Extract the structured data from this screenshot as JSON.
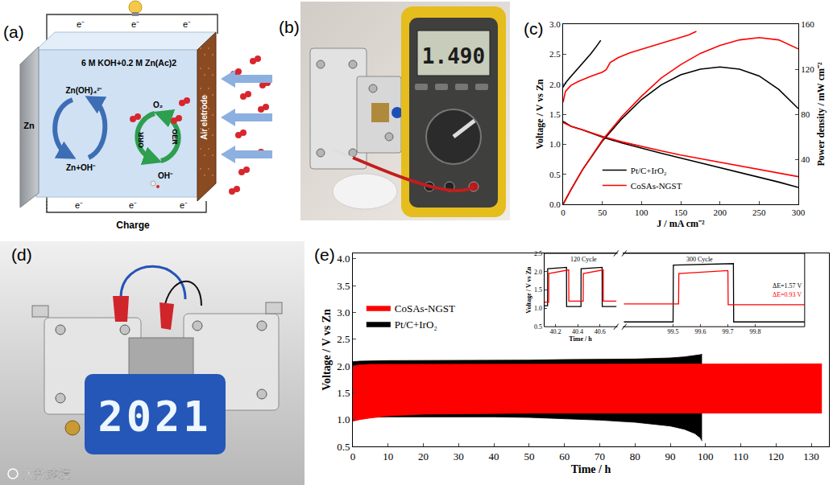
{
  "panel_labels": [
    "(a)",
    "(b)",
    "(c)",
    "(d)",
    "(e)"
  ],
  "diagram_a": {
    "electrolyte": "6 M KOH+0.2 M Zn(Ac)2",
    "anode": "Zn",
    "anode_species_top": "Zn(OH)₄²⁻",
    "anode_species_bottom": "Zn+OH⁻",
    "cathode": "Air eletrode",
    "oxygen": "O₂",
    "hydroxide": "OH⁻",
    "reaction_left": "ORR",
    "reaction_right": "OER",
    "electrons_top": [
      "e⁻",
      "e⁻",
      "e⁻"
    ],
    "electrons_bottom": [
      "e⁻",
      "e⁻",
      "e⁻"
    ],
    "bottom_label": "Charge"
  },
  "photo_b": {
    "meter_reading": "1.490"
  },
  "photo_d": {
    "led_text": "2021"
  },
  "watermark": "大数跨境",
  "chart_data": [
    {
      "type": "line",
      "x_label": "J / mA cm⁻²",
      "y_label": "Voltage / V vs Zn",
      "y2_label": "Power density / mW cm⁻²",
      "xlim": [
        0,
        300
      ],
      "xticks": [
        0,
        50,
        100,
        150,
        200,
        250,
        300
      ],
      "ylim": [
        0,
        3
      ],
      "yticks": [
        {
          "value": 0,
          "label": "0.0"
        },
        0.5,
        {
          "value": 1,
          "label": "1.0"
        },
        1.5,
        {
          "value": 2,
          "label": "2.0"
        },
        2.5,
        {
          "value": 3,
          "label": "3.0"
        }
      ],
      "y2lim": [
        0,
        160
      ],
      "y2ticks": [
        40,
        80,
        120,
        160
      ],
      "grid": false,
      "legend": "lower left",
      "series": [
        {
          "name": "Pt/C+IrO₂",
          "color": "#000000",
          "axis": "y",
          "x": [
            0,
            3,
            8,
            15,
            25,
            35,
            42,
            48
          ],
          "values": [
            1.95,
            2.02,
            2.1,
            2.2,
            2.35,
            2.5,
            2.62,
            2.73
          ]
        },
        {
          "name": "Pt/C+IrO₂",
          "color": "#000000",
          "axis": "y",
          "x": [
            0,
            10,
            25,
            50,
            75,
            100,
            125,
            150,
            175,
            200,
            225,
            250,
            275,
            300
          ],
          "values": [
            1.38,
            1.3,
            1.24,
            1.12,
            1.02,
            0.93,
            0.85,
            0.77,
            0.69,
            0.61,
            0.54,
            0.46,
            0.37,
            0.28
          ]
        },
        {
          "name": "Pt/C+IrO₂",
          "color": "#000000",
          "axis": "y2",
          "x": [
            0,
            10,
            25,
            50,
            75,
            100,
            125,
            150,
            175,
            200,
            225,
            250,
            275,
            300
          ],
          "values": [
            0,
            13,
            31,
            56,
            76,
            93,
            106,
            115,
            120,
            122,
            120,
            114,
            102,
            85
          ]
        },
        {
          "name": "CoSAs-NGST",
          "color": "#ff0000",
          "axis": "y",
          "x": [
            0,
            3,
            10,
            20,
            35,
            50,
            55,
            60,
            70,
            85,
            100,
            120,
            140,
            160,
            170
          ],
          "values": [
            1.7,
            1.88,
            1.98,
            2.05,
            2.13,
            2.2,
            2.24,
            2.36,
            2.44,
            2.52,
            2.58,
            2.66,
            2.74,
            2.82,
            2.88
          ]
        },
        {
          "name": "CoSAs-NGST",
          "color": "#ff0000",
          "axis": "y",
          "x": [
            0,
            10,
            25,
            50,
            75,
            100,
            125,
            150,
            175,
            200,
            225,
            250,
            275,
            300
          ],
          "values": [
            1.36,
            1.3,
            1.24,
            1.13,
            1.04,
            0.96,
            0.89,
            0.82,
            0.76,
            0.7,
            0.65,
            0.59,
            0.53,
            0.46
          ]
        },
        {
          "name": "CoSAs-NGST",
          "color": "#ff0000",
          "axis": "y2",
          "x": [
            0,
            10,
            25,
            50,
            75,
            100,
            125,
            150,
            175,
            200,
            225,
            250,
            275,
            300
          ],
          "values": [
            0,
            13,
            31,
            57,
            78,
            96,
            112,
            124,
            134,
            141,
            146,
            148,
            146,
            138
          ]
        }
      ]
    },
    {
      "type": "band",
      "x_label": "Time / h",
      "y_label": "Voltage / V vs Zn",
      "xlim": [
        0,
        135
      ],
      "xticks": [
        0,
        10,
        20,
        30,
        40,
        50,
        60,
        70,
        80,
        90,
        100,
        110,
        120,
        130
      ],
      "ylim": [
        0.5,
        4.1
      ],
      "yticks": [
        0.5,
        {
          "value": 1,
          "label": "1.0"
        },
        1.5,
        {
          "value": 2,
          "label": "2.0"
        },
        2.5,
        {
          "value": 3,
          "label": "3.0"
        },
        3.5,
        {
          "value": 4,
          "label": "4.0"
        }
      ],
      "grid": false,
      "legend": "upper left",
      "series": [
        {
          "name": "Pt/C+IrO₂",
          "color": "#000000",
          "x": [
            0,
            2,
            10,
            20,
            30,
            40,
            50,
            60,
            70,
            80,
            85,
            90,
            94,
            97,
            98.5,
            99
          ],
          "values": [
            2.08,
            2.09,
            2.1,
            2.1,
            2.1,
            2.11,
            2.11,
            2.12,
            2.12,
            2.13,
            2.14,
            2.15,
            2.17,
            2.19,
            2.21,
            2.22
          ],
          "lower": [
            1.0,
            1.04,
            1.05,
            1.05,
            1.06,
            1.05,
            1.04,
            1.02,
            0.99,
            0.95,
            0.92,
            0.88,
            0.82,
            0.74,
            0.66,
            0.6
          ]
        },
        {
          "name": "CoSAs-NGST",
          "color": "#ff0000",
          "x": [
            0,
            2,
            5,
            10,
            20,
            30,
            40,
            50,
            60,
            70,
            80,
            90,
            100,
            110,
            120,
            130,
            133
          ],
          "values": [
            2.0,
            2.02,
            2.03,
            2.03,
            2.03,
            2.03,
            2.03,
            2.03,
            2.03,
            2.04,
            2.04,
            2.04,
            2.04,
            2.04,
            2.04,
            2.04,
            2.04
          ],
          "lower": [
            0.97,
            1.0,
            1.03,
            1.07,
            1.1,
            1.11,
            1.11,
            1.12,
            1.12,
            1.12,
            1.12,
            1.12,
            1.12,
            1.12,
            1.12,
            1.12,
            1.12
          ]
        }
      ]
    },
    {
      "type": "line",
      "x_label": "Time / h",
      "y_label": "Voltage / V vs Zn",
      "x_segments": [
        {
          "xlim": [
            40.1,
            40.75
          ],
          "xticks": [
            40.2,
            40.4,
            40.6
          ]
        },
        {
          "xlim": [
            99.32,
            99.98
          ],
          "xticks": [
            99.5,
            99.6,
            99.7,
            99.8
          ]
        }
      ],
      "ylim": [
        0.5,
        2.5
      ],
      "yticks": [
        0.5,
        {
          "value": 1,
          "label": "1.0"
        },
        1.5,
        {
          "value": 2,
          "label": "2.0"
        },
        2.5
      ],
      "grid": false,
      "annotations": [
        {
          "text": "120 Cycle",
          "color": "#000000"
        },
        {
          "text": "300 Cycle",
          "color": "#000000"
        },
        {
          "text": "ΔE=1.57 V",
          "color": "#000000"
        },
        {
          "text": "ΔE=0.93 V",
          "color": "#ff0000"
        }
      ],
      "series": [
        {
          "color": "#000000",
          "x": [
            40.1,
            40.13,
            40.131,
            40.3,
            40.301,
            40.43,
            40.431,
            40.62,
            40.621,
            40.75,
            99.32,
            99.5,
            99.501,
            99.72,
            99.721,
            99.98
          ],
          "values": [
            1.07,
            1.07,
            2.08,
            2.12,
            1.05,
            1.05,
            2.08,
            2.12,
            1.05,
            1.05,
            0.63,
            0.63,
            2.18,
            2.22,
            0.63,
            0.63
          ]
        },
        {
          "color": "#ff0000",
          "x": [
            40.1,
            40.14,
            40.141,
            40.32,
            40.321,
            40.45,
            40.451,
            40.63,
            40.631,
            40.75,
            99.32,
            99.52,
            99.521,
            99.7,
            99.701,
            99.98
          ],
          "values": [
            1.17,
            1.17,
            1.95,
            2.05,
            1.2,
            1.2,
            1.95,
            2.05,
            1.2,
            1.2,
            1.12,
            1.12,
            1.95,
            2.03,
            1.1,
            1.1
          ]
        }
      ]
    }
  ]
}
